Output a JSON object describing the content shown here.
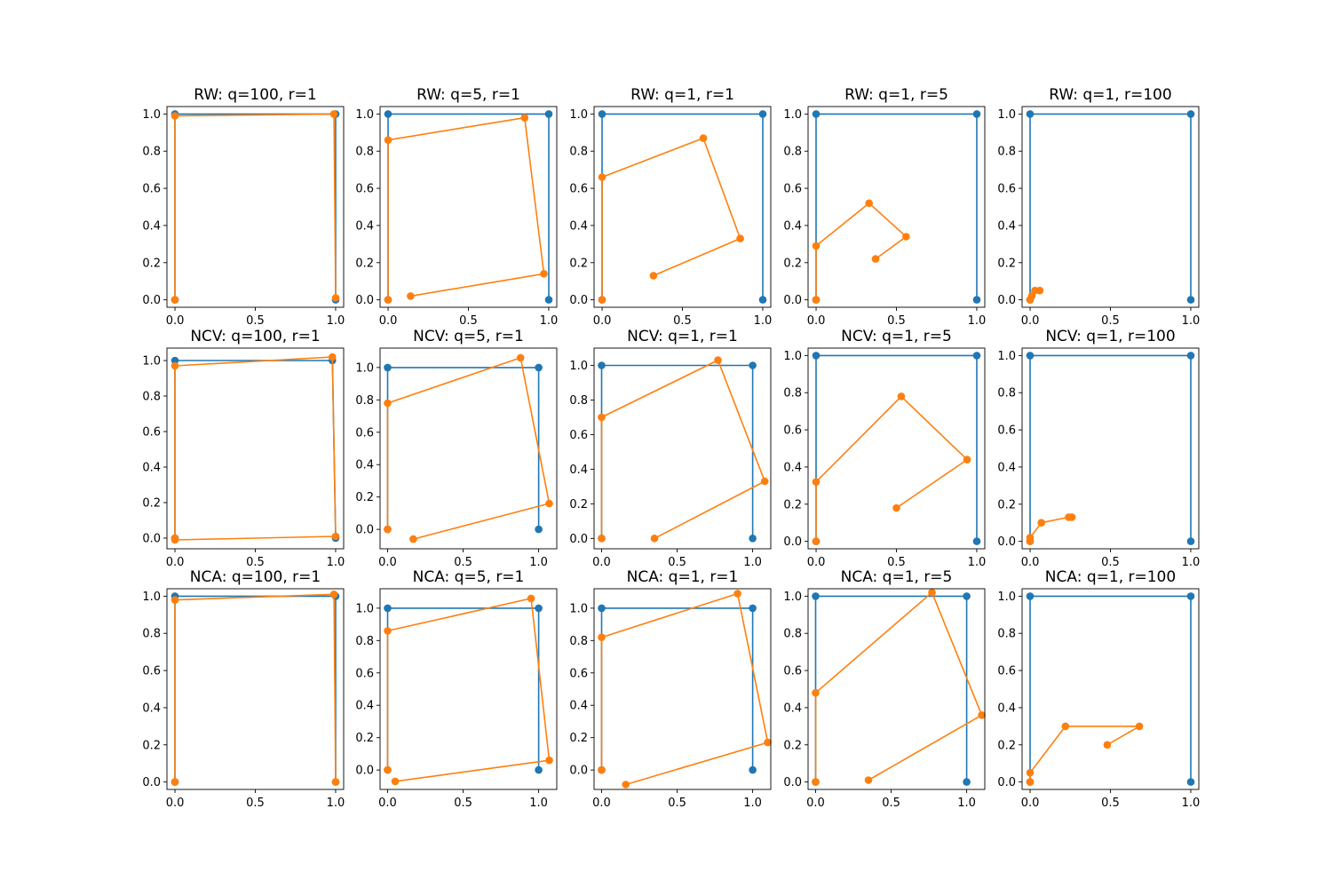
{
  "colors": {
    "target": "#1f77b4",
    "fitted": "#ff7f0e"
  },
  "chart_data": [
    {
      "type": "line",
      "title": "RW: q=100, r=1",
      "xlim": [
        -0.05,
        1.05
      ],
      "ylim": [
        -0.04,
        1.04
      ],
      "xticks": [
        "0.0",
        "0.5",
        "1.0"
      ],
      "yticks": [
        "0.0",
        "0.2",
        "0.4",
        "0.6",
        "0.8",
        "1.0"
      ],
      "series": [
        {
          "values": [
            [
              1,
              0
            ],
            [
              1,
              1
            ],
            [
              0,
              1
            ],
            [
              0,
              0
            ]
          ]
        },
        {
          "values": [
            [
              1.0,
              0.01
            ],
            [
              0.99,
              1.0
            ],
            [
              0,
              0.99
            ],
            [
              0,
              0
            ]
          ]
        }
      ]
    },
    {
      "type": "line",
      "title": "RW: q=5, r=1",
      "xlim": [
        -0.05,
        1.05
      ],
      "ylim": [
        -0.04,
        1.04
      ],
      "xticks": [
        "0.0",
        "0.5",
        "1.0"
      ],
      "yticks": [
        "0.0",
        "0.2",
        "0.4",
        "0.6",
        "0.8",
        "1.0"
      ],
      "series": [
        {
          "values": [
            [
              1,
              0
            ],
            [
              1,
              1
            ],
            [
              0,
              1
            ],
            [
              0,
              0
            ]
          ]
        },
        {
          "values": [
            [
              0.14,
              0.02
            ],
            [
              0.97,
              0.14
            ],
            [
              0.85,
              0.98
            ],
            [
              0,
              0.86
            ],
            [
              0,
              0
            ]
          ]
        }
      ]
    },
    {
      "type": "line",
      "title": "RW: q=1, r=1",
      "xlim": [
        -0.05,
        1.05
      ],
      "ylim": [
        -0.04,
        1.04
      ],
      "xticks": [
        "0.0",
        "0.5",
        "1.0"
      ],
      "yticks": [
        "0.0",
        "0.2",
        "0.4",
        "0.6",
        "0.8",
        "1.0"
      ],
      "series": [
        {
          "values": [
            [
              1,
              0
            ],
            [
              1,
              1
            ],
            [
              0,
              1
            ],
            [
              0,
              0
            ]
          ]
        },
        {
          "values": [
            [
              0.32,
              0.13
            ],
            [
              0.86,
              0.33
            ],
            [
              0.63,
              0.87
            ],
            [
              0,
              0.66
            ],
            [
              0,
              0
            ]
          ]
        }
      ]
    },
    {
      "type": "line",
      "title": "RW: q=1, r=5",
      "xlim": [
        -0.05,
        1.05
      ],
      "ylim": [
        -0.04,
        1.04
      ],
      "xticks": [
        "0.0",
        "0.5",
        "1.0"
      ],
      "yticks": [
        "0.0",
        "0.2",
        "0.4",
        "0.6",
        "0.8",
        "1.0"
      ],
      "series": [
        {
          "values": [
            [
              1,
              0
            ],
            [
              1,
              1
            ],
            [
              0,
              1
            ],
            [
              0,
              0
            ]
          ]
        },
        {
          "values": [
            [
              0.37,
              0.22
            ],
            [
              0.56,
              0.34
            ],
            [
              0.33,
              0.52
            ],
            [
              0,
              0.29
            ],
            [
              0,
              0
            ]
          ]
        }
      ]
    },
    {
      "type": "line",
      "title": "RW: q=1, r=100",
      "xlim": [
        -0.05,
        1.05
      ],
      "ylim": [
        -0.04,
        1.04
      ],
      "xticks": [
        "0.0",
        "0.5",
        "1.0"
      ],
      "yticks": [
        "0.0",
        "0.2",
        "0.4",
        "0.6",
        "0.8",
        "1.0"
      ],
      "series": [
        {
          "values": [
            [
              1,
              0
            ],
            [
              1,
              1
            ],
            [
              0,
              1
            ],
            [
              0,
              0
            ]
          ]
        },
        {
          "values": [
            [
              0.06,
              0.05
            ],
            [
              0.03,
              0.05
            ],
            [
              0.01,
              0.02
            ],
            [
              0,
              0
            ]
          ]
        }
      ]
    },
    {
      "type": "line",
      "title": "NCV: q=100, r=1",
      "xlim": [
        -0.05,
        1.05
      ],
      "ylim": [
        -0.06,
        1.07
      ],
      "xticks": [
        "0.0",
        "0.5",
        "1.0"
      ],
      "yticks": [
        "0.0",
        "0.2",
        "0.4",
        "0.6",
        "0.8",
        "1.0"
      ],
      "series": [
        {
          "values": [
            [
              1,
              0
            ],
            [
              0.98,
              1.0
            ],
            [
              0,
              1.0
            ],
            [
              0,
              0
            ]
          ]
        },
        {
          "values": [
            [
              0,
              -0.01
            ],
            [
              1.0,
              0.01
            ],
            [
              0.98,
              1.02
            ],
            [
              0,
              0.97
            ],
            [
              0,
              0
            ]
          ]
        }
      ]
    },
    {
      "type": "line",
      "title": "NCV: q=5, r=1",
      "xlim": [
        -0.05,
        1.12
      ],
      "ylim": [
        -0.12,
        1.12
      ],
      "xticks": [
        "0.0",
        "0.5",
        "1.0"
      ],
      "yticks": [
        "0.0",
        "0.2",
        "0.4",
        "0.6",
        "0.8",
        "1.0"
      ],
      "series": [
        {
          "values": [
            [
              1,
              0
            ],
            [
              1,
              1
            ],
            [
              0,
              1
            ],
            [
              0,
              0
            ]
          ]
        },
        {
          "values": [
            [
              0.17,
              -0.06
            ],
            [
              1.07,
              0.16
            ],
            [
              0.88,
              1.06
            ],
            [
              0,
              0.78
            ],
            [
              0,
              0
            ]
          ]
        }
      ]
    },
    {
      "type": "line",
      "title": "NCV: q=1, r=1",
      "xlim": [
        -0.05,
        1.12
      ],
      "ylim": [
        -0.06,
        1.1
      ],
      "xticks": [
        "0.0",
        "0.5",
        "1.0"
      ],
      "yticks": [
        "0.0",
        "0.2",
        "0.4",
        "0.6",
        "0.8",
        "1.0"
      ],
      "series": [
        {
          "values": [
            [
              1,
              0
            ],
            [
              1,
              1
            ],
            [
              0,
              1
            ],
            [
              0,
              0
            ]
          ]
        },
        {
          "values": [
            [
              0.35,
              0
            ],
            [
              1.08,
              0.33
            ],
            [
              0.77,
              1.03
            ],
            [
              0,
              0.7
            ],
            [
              0,
              0
            ]
          ]
        }
      ]
    },
    {
      "type": "line",
      "title": "NCV: q=1, r=5",
      "xlim": [
        -0.05,
        1.05
      ],
      "ylim": [
        -0.04,
        1.04
      ],
      "xticks": [
        "0.0",
        "0.5",
        "1.0"
      ],
      "yticks": [
        "0.0",
        "0.2",
        "0.4",
        "0.6",
        "0.8",
        "1.0"
      ],
      "series": [
        {
          "values": [
            [
              1,
              0
            ],
            [
              1,
              1
            ],
            [
              0,
              1
            ],
            [
              0,
              0
            ]
          ]
        },
        {
          "values": [
            [
              0.5,
              0.18
            ],
            [
              0.94,
              0.44
            ],
            [
              0.53,
              0.78
            ],
            [
              0,
              0.32
            ],
            [
              0,
              0
            ]
          ]
        }
      ]
    },
    {
      "type": "line",
      "title": "NCV: q=1, r=100",
      "xlim": [
        -0.05,
        1.05
      ],
      "ylim": [
        -0.04,
        1.04
      ],
      "xticks": [
        "0.0",
        "0.5",
        "1.0"
      ],
      "yticks": [
        "0.0",
        "0.2",
        "0.4",
        "0.6",
        "0.8",
        "1.0"
      ],
      "series": [
        {
          "values": [
            [
              1,
              0
            ],
            [
              1,
              1
            ],
            [
              0,
              1
            ],
            [
              0,
              0
            ]
          ]
        },
        {
          "values": [
            [
              0.26,
              0.13
            ],
            [
              0.24,
              0.13
            ],
            [
              0.07,
              0.1
            ],
            [
              0,
              0.02
            ],
            [
              0,
              0
            ]
          ]
        }
      ]
    },
    {
      "type": "line",
      "title": "NCA: q=100, r=1",
      "xlim": [
        -0.05,
        1.05
      ],
      "ylim": [
        -0.04,
        1.04
      ],
      "xticks": [
        "0.0",
        "0.5",
        "1.0"
      ],
      "yticks": [
        "0.0",
        "0.2",
        "0.4",
        "0.6",
        "0.8",
        "1.0"
      ],
      "series": [
        {
          "values": [
            [
              1,
              0
            ],
            [
              1,
              1
            ],
            [
              0,
              1
            ],
            [
              0,
              0
            ]
          ]
        },
        {
          "values": [
            [
              1.0,
              0.0
            ],
            [
              0.99,
              1.01
            ],
            [
              0,
              0.98
            ],
            [
              0,
              0
            ]
          ]
        }
      ]
    },
    {
      "type": "line",
      "title": "NCA: q=5, r=1",
      "xlim": [
        -0.05,
        1.12
      ],
      "ylim": [
        -0.12,
        1.12
      ],
      "xticks": [
        "0.0",
        "0.5",
        "1.0"
      ],
      "yticks": [
        "0.0",
        "0.2",
        "0.4",
        "0.6",
        "0.8",
        "1.0"
      ],
      "series": [
        {
          "values": [
            [
              1,
              0
            ],
            [
              1,
              1
            ],
            [
              0,
              1
            ],
            [
              0,
              0
            ]
          ]
        },
        {
          "values": [
            [
              0.05,
              -0.07
            ],
            [
              1.07,
              0.06
            ],
            [
              0.95,
              1.06
            ],
            [
              0,
              0.86
            ],
            [
              0,
              0
            ]
          ]
        }
      ]
    },
    {
      "type": "line",
      "title": "NCA: q=1, r=1",
      "xlim": [
        -0.05,
        1.12
      ],
      "ylim": [
        -0.12,
        1.12
      ],
      "xticks": [
        "0.0",
        "0.5",
        "1.0"
      ],
      "yticks": [
        "0.0",
        "0.2",
        "0.4",
        "0.6",
        "0.8",
        "1.0"
      ],
      "series": [
        {
          "values": [
            [
              1,
              0
            ],
            [
              1,
              1
            ],
            [
              0,
              1
            ],
            [
              0,
              0
            ]
          ]
        },
        {
          "values": [
            [
              0.16,
              -0.09
            ],
            [
              1.1,
              0.17
            ],
            [
              0.9,
              1.09
            ],
            [
              0,
              0.82
            ],
            [
              0,
              0
            ]
          ]
        }
      ]
    },
    {
      "type": "line",
      "title": "NCA: q=1, r=5",
      "xlim": [
        -0.05,
        1.12
      ],
      "ylim": [
        -0.04,
        1.04
      ],
      "xticks": [
        "0.0",
        "0.5",
        "1.0"
      ],
      "yticks": [
        "0.0",
        "0.2",
        "0.4",
        "0.6",
        "0.8",
        "1.0"
      ],
      "series": [
        {
          "values": [
            [
              1,
              0
            ],
            [
              1,
              1
            ],
            [
              0,
              1
            ],
            [
              0,
              0
            ]
          ]
        },
        {
          "values": [
            [
              0.35,
              0.01
            ],
            [
              1.1,
              0.36
            ],
            [
              0.77,
              1.02
            ],
            [
              0,
              0.48
            ],
            [
              0,
              0
            ]
          ]
        }
      ]
    },
    {
      "type": "line",
      "title": "NCA: q=1, r=100",
      "xlim": [
        -0.05,
        1.05
      ],
      "ylim": [
        -0.04,
        1.04
      ],
      "xticks": [
        "0.0",
        "0.5",
        "1.0"
      ],
      "yticks": [
        "0.0",
        "0.2",
        "0.4",
        "0.6",
        "0.8",
        "1.0"
      ],
      "series": [
        {
          "values": [
            [
              1,
              0
            ],
            [
              1,
              1
            ],
            [
              0,
              1
            ],
            [
              0,
              0
            ]
          ]
        },
        {
          "values": [
            [
              0.48,
              0.2
            ],
            [
              0.68,
              0.3
            ],
            [
              0.22,
              0.3
            ],
            [
              0,
              0.05
            ],
            [
              0,
              0
            ]
          ]
        }
      ]
    }
  ]
}
